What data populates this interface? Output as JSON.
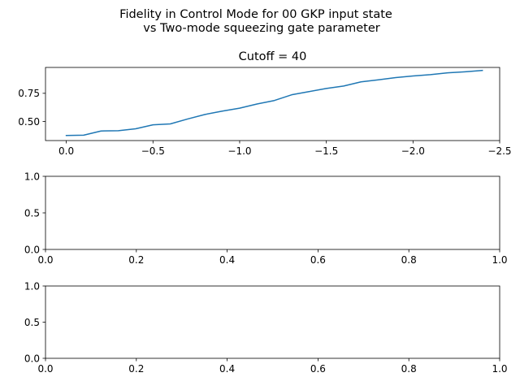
{
  "figure": {
    "title_line1": "Fidelity in Control Mode for 00 GKP input state",
    "title_line2": "vs Two-mode squeezing gate parameter"
  },
  "chart_data": [
    {
      "type": "line",
      "title": "Cutoff = 40",
      "xlabel": "",
      "ylabel": "",
      "xlim": [
        0.12,
        -2.5
      ],
      "ylim": [
        0.33,
        0.98
      ],
      "x_inverted": true,
      "xticks": [
        0.0,
        -0.5,
        -1.0,
        -1.5,
        -2.0,
        -2.5
      ],
      "xtick_labels": [
        "0.0",
        "−0.5",
        "−1.0",
        "−1.5",
        "−2.0",
        "−2.5"
      ],
      "yticks": [
        0.5,
        0.75
      ],
      "ytick_labels": [
        "0.50",
        "0.75"
      ],
      "grid": false,
      "series": [
        {
          "color": "#1f77b4",
          "x": [
            0.0,
            -0.1,
            -0.2,
            -0.3,
            -0.4,
            -0.5,
            -0.6,
            -0.7,
            -0.8,
            -0.9,
            -1.0,
            -1.1,
            -1.2,
            -1.3,
            -1.4,
            -1.5,
            -1.6,
            -1.7,
            -1.8,
            -1.9,
            -2.0,
            -2.1,
            -2.2,
            -2.3,
            -2.4
          ],
          "y": [
            0.375,
            0.378,
            0.415,
            0.418,
            0.435,
            0.47,
            0.478,
            0.522,
            0.562,
            0.592,
            0.618,
            0.655,
            0.686,
            0.737,
            0.765,
            0.793,
            0.815,
            0.852,
            0.87,
            0.89,
            0.904,
            0.916,
            0.932,
            0.941,
            0.953
          ]
        }
      ]
    },
    {
      "type": "line",
      "title": "",
      "xlim": [
        0,
        1
      ],
      "ylim": [
        0,
        1
      ],
      "xticks": [
        0,
        0.2,
        0.4,
        0.6,
        0.8,
        1.0
      ],
      "xtick_labels": [
        "0.0",
        "0.2",
        "0.4",
        "0.6",
        "0.8",
        "1.0"
      ],
      "yticks": [
        0,
        0.5,
        1.0
      ],
      "ytick_labels": [
        "0.0",
        "0.5",
        "1.0"
      ],
      "grid": false,
      "series": []
    },
    {
      "type": "line",
      "title": "",
      "xlim": [
        0,
        1
      ],
      "ylim": [
        0,
        1
      ],
      "xticks": [
        0,
        0.2,
        0.4,
        0.6,
        0.8,
        1.0
      ],
      "xtick_labels": [
        "0.0",
        "0.2",
        "0.4",
        "0.6",
        "0.8",
        "1.0"
      ],
      "yticks": [
        0,
        0.5,
        1.0
      ],
      "ytick_labels": [
        "0.0",
        "0.5",
        "1.0"
      ],
      "grid": false,
      "series": []
    }
  ]
}
